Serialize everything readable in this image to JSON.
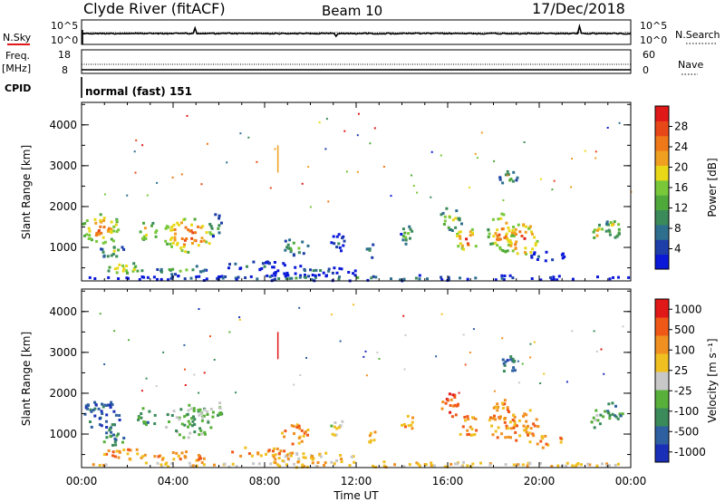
{
  "header": {
    "station": "Clyde River (fitACF)",
    "beam": "Beam 10",
    "date": "17/Dec/2018"
  },
  "top_panels": {
    "nsky_label": "N.Sky",
    "nsearch_label": "N.Search",
    "nsky_ticks": [
      "10^5",
      "10^0"
    ],
    "nsearch_ticks": [
      "10^5",
      "10^0"
    ],
    "freq_label_line1": "Freq.",
    "freq_label_line2": "[MHz]",
    "freq_ticks": [
      "18",
      "8"
    ],
    "nave_label": "Nave",
    "nave_ticks": [
      "60",
      "0"
    ],
    "cpid_label": "CPID",
    "cpid_value": "normal (fast) 151"
  },
  "chart_data": [
    {
      "type": "heatmap",
      "title": "",
      "ylabel": "Slant Range [km]",
      "yticks": [
        "4000",
        "3000",
        "2000",
        "1000"
      ],
      "ylim": [
        180,
        4550
      ],
      "xlim": [
        "00:00",
        "24:00"
      ],
      "colorbar": {
        "label": "Power [dB]",
        "ticks": [
          "28",
          "24",
          "20",
          "16",
          "12",
          "8",
          "4"
        ],
        "range": [
          0,
          32
        ],
        "colors": [
          "#0a18d8",
          "#1e3fa8",
          "#2e6f8e",
          "#3a8a5a",
          "#4ea83a",
          "#78c83a",
          "#e8d818",
          "#f0a020",
          "#ef7818",
          "#e84818",
          "#e01818"
        ]
      }
    },
    {
      "type": "heatmap",
      "title": "",
      "ylabel": "Slant Range [km]",
      "yticks": [
        "4000",
        "3000",
        "2000",
        "1000"
      ],
      "ylim": [
        180,
        4550
      ],
      "xlim": [
        "00:00",
        "24:00"
      ],
      "xlabel": "Time UT",
      "xticks": [
        "00:00",
        "04:00",
        "08:00",
        "12:00",
        "16:00",
        "20:00",
        "00:00"
      ],
      "colorbar": {
        "label": "Velocity [m s⁻¹]",
        "ticks": [
          "1000",
          "500",
          "100",
          "25",
          "-25",
          "-100",
          "-500",
          "-1000"
        ],
        "colors": [
          "#1a2fb8",
          "#2e5fa0",
          "#3a8a5a",
          "#58b03a",
          "#c8c8c8",
          "#f0c020",
          "#f09020",
          "#f05818",
          "#e01818"
        ]
      }
    }
  ]
}
